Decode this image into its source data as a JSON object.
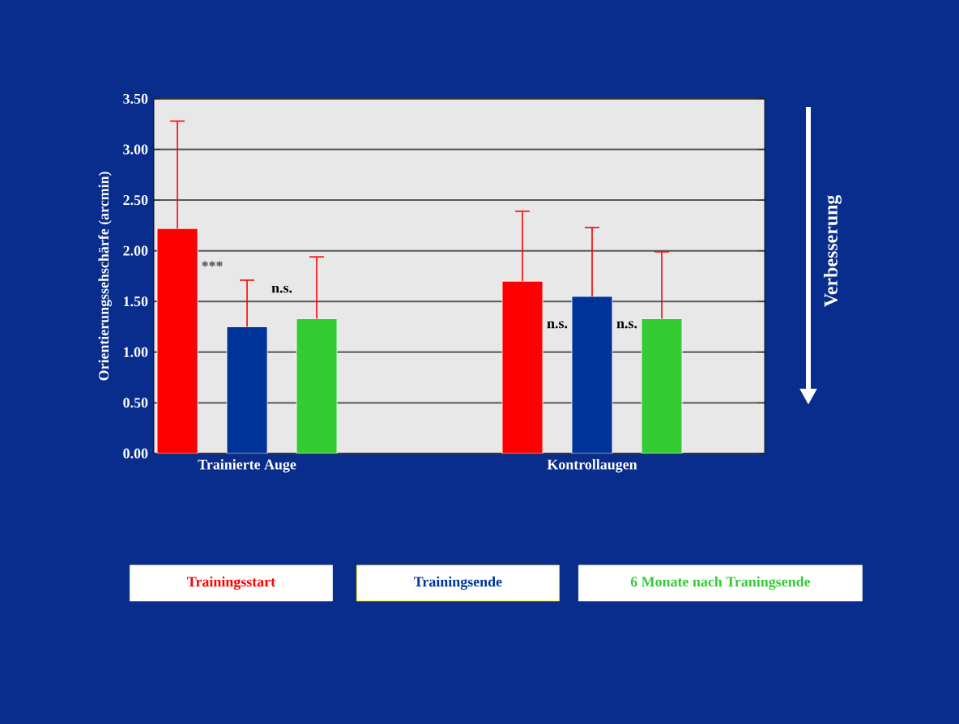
{
  "chart_data": {
    "type": "bar",
    "ylabel": "Orientierungssehschärfe (arcmin)",
    "categories": [
      "Trainierte Auge",
      "Kontrollaugen"
    ],
    "series": [
      {
        "name": "Trainingsstart",
        "color": "#ff0000",
        "values": [
          2.22,
          1.7
        ],
        "errors": [
          [
            2.22,
            3.28
          ],
          [
            1.7,
            2.39
          ]
        ]
      },
      {
        "name": "Trainingsende",
        "color": "#003399",
        "values": [
          1.25,
          1.55
        ],
        "errors": [
          [
            1.25,
            1.71
          ],
          [
            1.55,
            2.23
          ]
        ]
      },
      {
        "name": "6 Monate nach Traningsende",
        "color": "#33cc33",
        "values": [
          1.33,
          1.33
        ],
        "errors": [
          [
            1.33,
            1.94
          ],
          [
            1.33,
            1.99
          ]
        ]
      }
    ],
    "ylim": [
      0,
      3.5
    ],
    "yticks": [
      {
        "value": 0,
        "label": "0.00"
      },
      {
        "value": 0.5,
        "label": "0.50"
      },
      {
        "value": 1,
        "label": "1.00"
      },
      {
        "value": 1.5,
        "label": "1.50"
      },
      {
        "value": 2,
        "label": "2.00"
      },
      {
        "value": 2.5,
        "label": "2.50"
      },
      {
        "value": 3,
        "label": "3.00"
      },
      {
        "value": 3.5,
        "label": "3.50"
      }
    ],
    "grid": "y",
    "legend": "bottom",
    "annotations": [
      "***",
      "n.s.",
      "n.s.",
      "n.s.",
      "Verbesserung"
    ]
  }
}
